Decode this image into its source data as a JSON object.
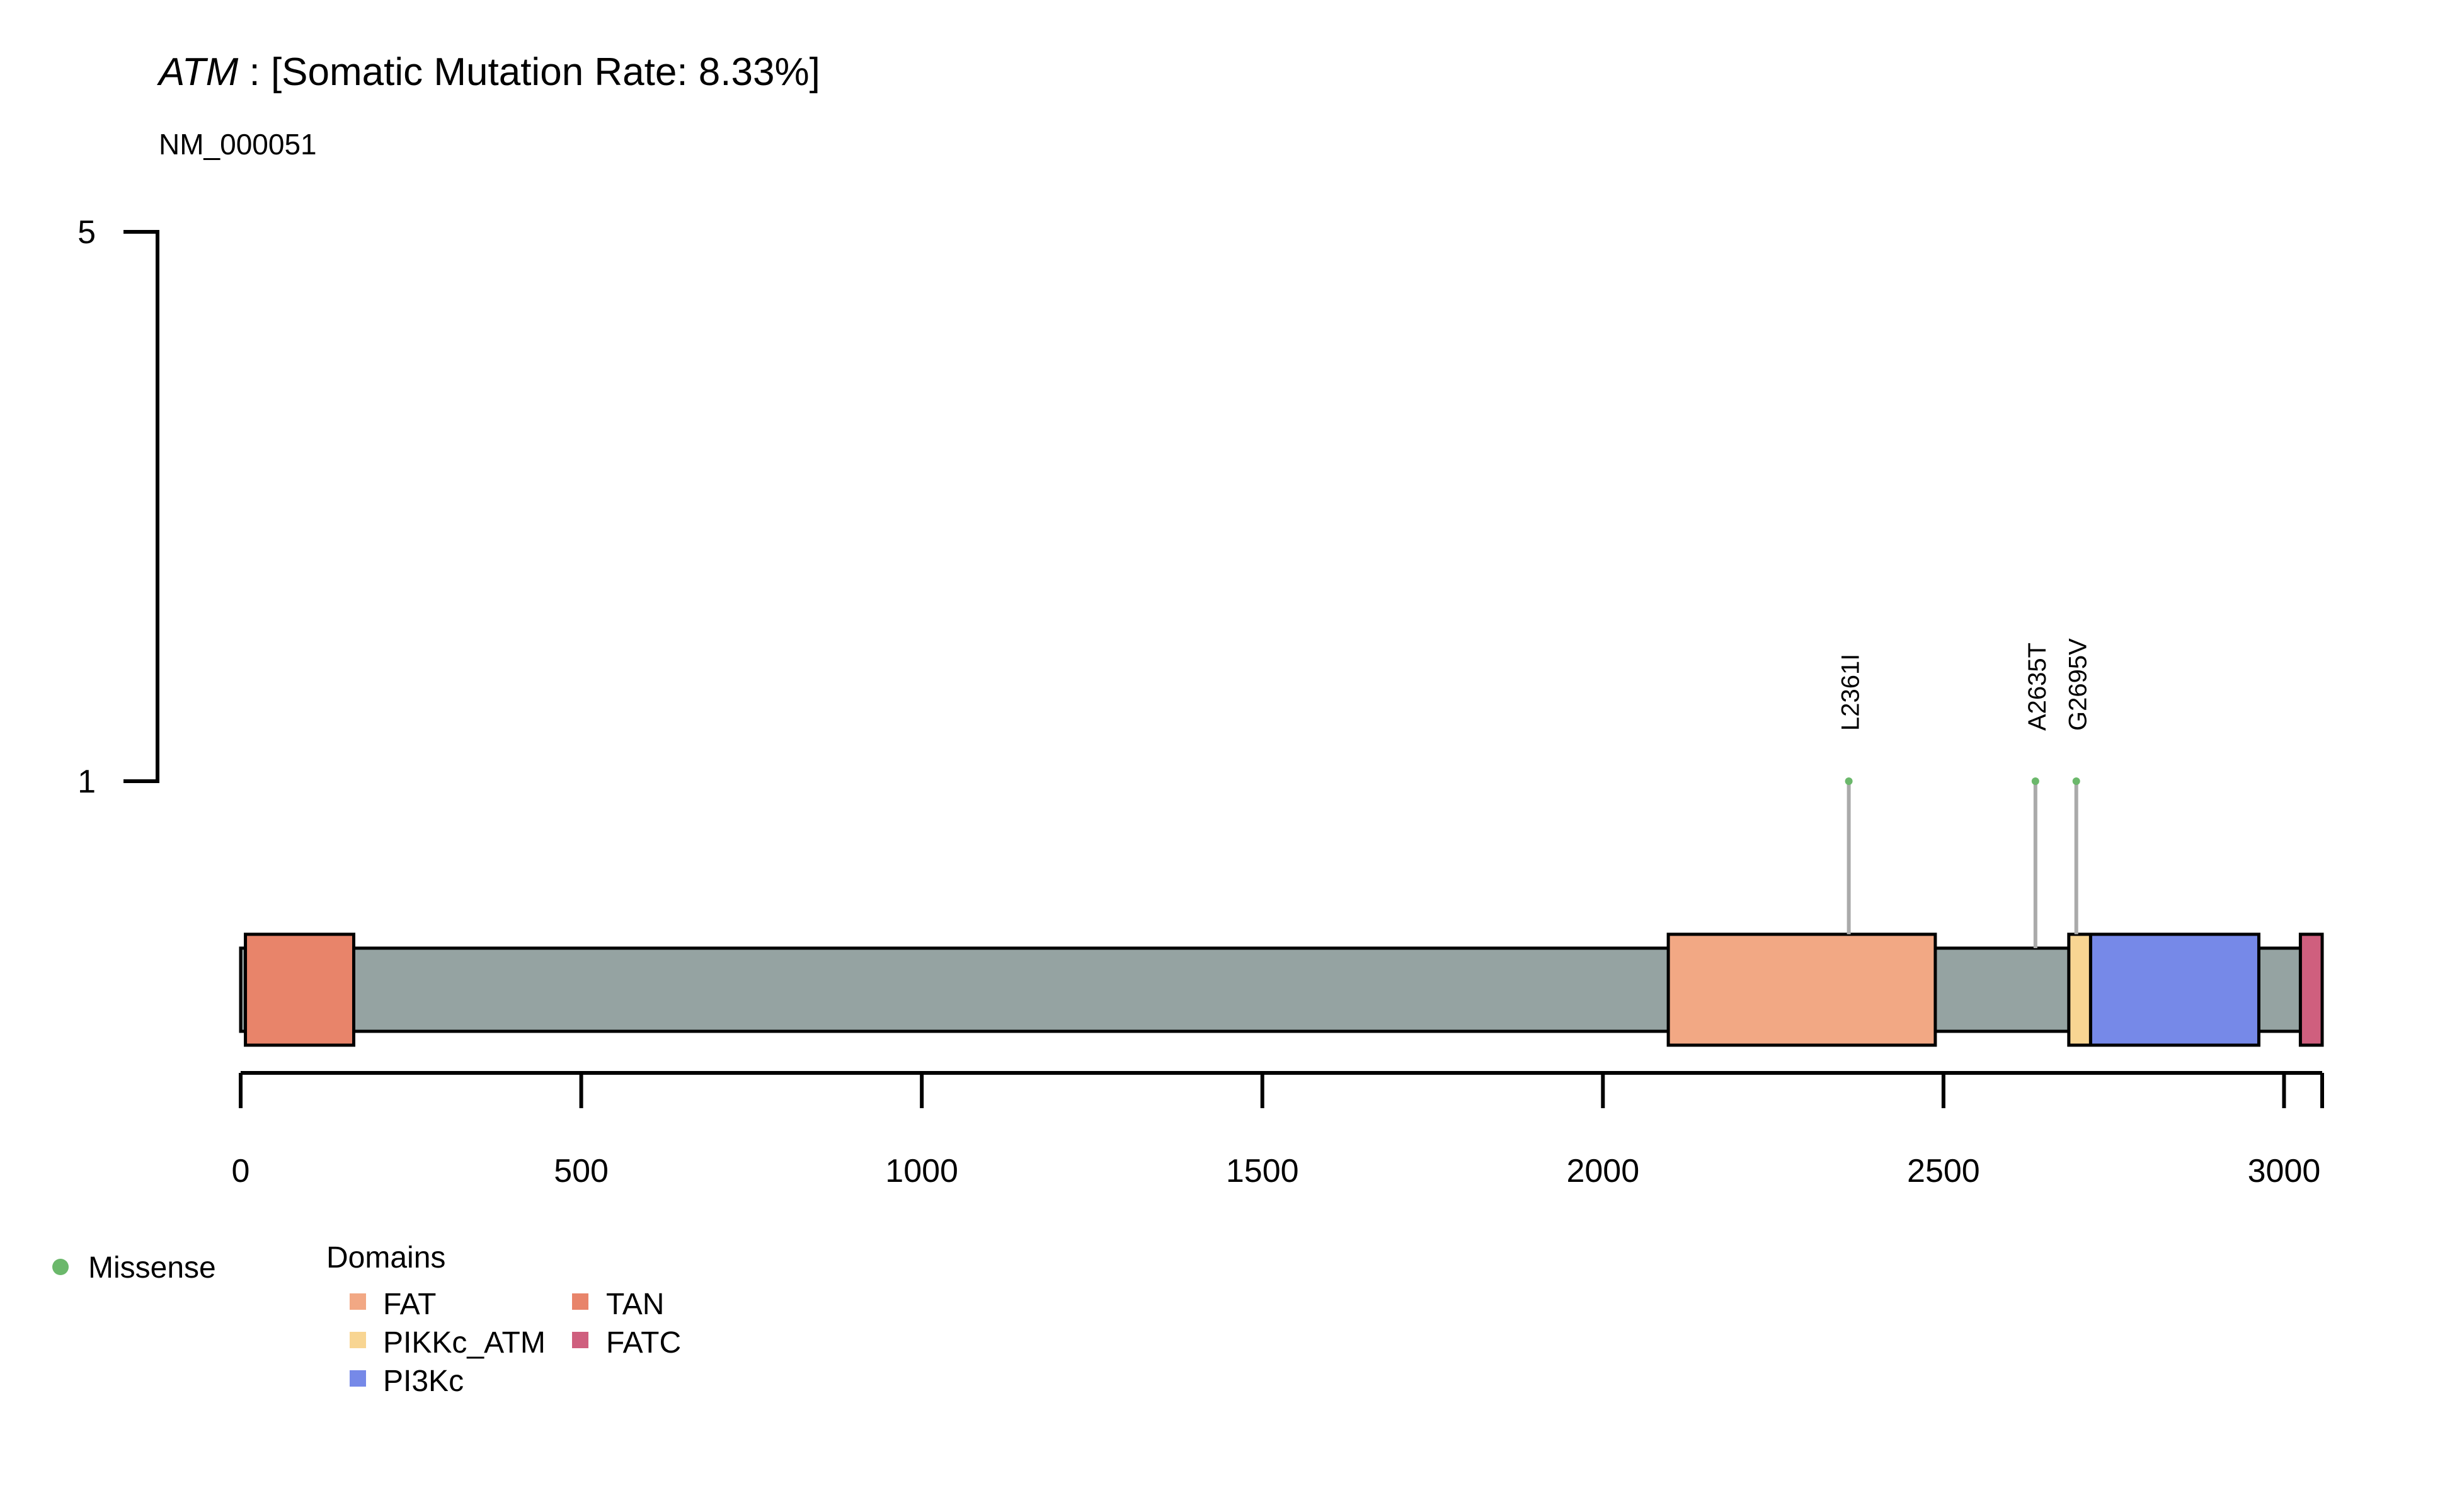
{
  "chart_data": {
    "type": "lollipop",
    "title": {
      "gene": "ATM",
      "rest": " : [Somatic Mutation Rate: 8.33%]"
    },
    "subtitle": "NM_000051",
    "protein_length": 3056,
    "xlim": [
      0,
      3056
    ],
    "x_ticks": [
      0,
      500,
      1000,
      1500,
      2000,
      2500,
      3000
    ],
    "y_ticks": [
      1,
      5
    ],
    "y_axis_ticks_drawn": [
      1,
      5
    ],
    "domains": [
      {
        "name": "TAN",
        "start": 7,
        "end": 166,
        "color": "#E8846A"
      },
      {
        "name": "FAT",
        "start": 2096,
        "end": 2488,
        "color": "#F2A884"
      },
      {
        "name": "PIKKc_ATM",
        "start": 2684,
        "end": 2716,
        "color": "#F8D592"
      },
      {
        "name": "PI3Kc",
        "start": 2716,
        "end": 2963,
        "color": "#7689E8"
      },
      {
        "name": "FATC",
        "start": 3024,
        "end": 3056,
        "color": "#CF5F7E"
      }
    ],
    "mutations": [
      {
        "label": "L2361I",
        "position": 2361,
        "count": 1,
        "type": "Missense"
      },
      {
        "label": "A2635T",
        "position": 2635,
        "count": 1,
        "type": "Missense"
      },
      {
        "label": "G2695V",
        "position": 2695,
        "count": 1,
        "type": "Missense"
      }
    ],
    "protein_color": "#95A3A2",
    "lollipop_stick_color": "#AAAAAA",
    "legend_mutation": {
      "label": "Missense",
      "color": "#6BB86B"
    },
    "legend_domains": {
      "title": "Domains",
      "items": [
        {
          "name": "FAT",
          "color": "#F2A884"
        },
        {
          "name": "PIKKc_ATM",
          "color": "#F8D592"
        },
        {
          "name": "PI3Kc",
          "color": "#7689E8"
        },
        {
          "name": "TAN",
          "color": "#E8846A"
        },
        {
          "name": "FATC",
          "color": "#CF5F7E"
        }
      ]
    }
  }
}
